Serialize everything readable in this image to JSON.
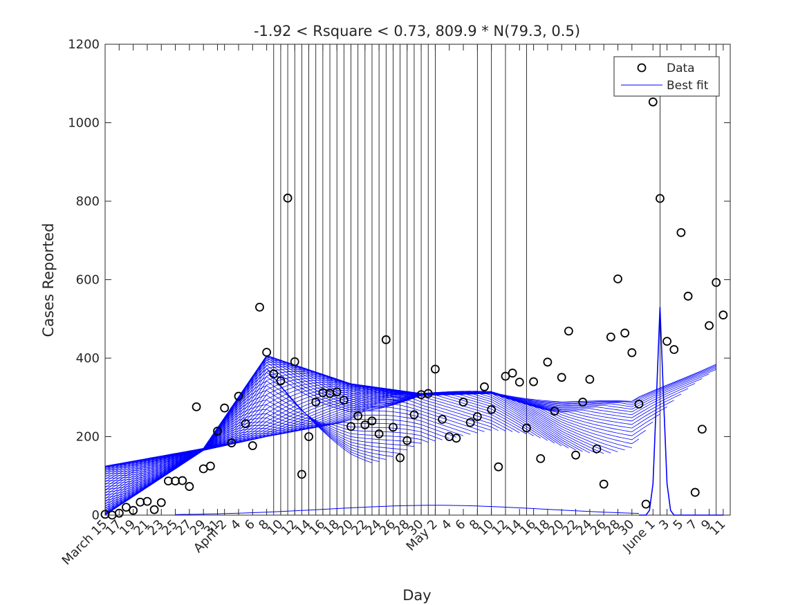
{
  "chart_data": {
    "type": "scatter",
    "title": "-1.92 < Rsquare < 0.73,  809.9 * N(79.3, 0.5)",
    "xlabel": "Day",
    "ylabel": "Cases Reported",
    "xlim": [
      0,
      89
    ],
    "ylim": [
      0,
      1200
    ],
    "y_ticks": [
      0,
      200,
      400,
      600,
      800,
      1000,
      1200
    ],
    "x_ticks": [
      {
        "x": 0,
        "label": "March 15"
      },
      {
        "x": 2,
        "label": "17"
      },
      {
        "x": 4,
        "label": "19"
      },
      {
        "x": 6,
        "label": "21"
      },
      {
        "x": 8,
        "label": "23"
      },
      {
        "x": 10,
        "label": "25"
      },
      {
        "x": 12,
        "label": "27"
      },
      {
        "x": 14,
        "label": "29"
      },
      {
        "x": 16,
        "label": "31"
      },
      {
        "x": 17,
        "label": "April 2"
      },
      {
        "x": 19,
        "label": "4"
      },
      {
        "x": 21,
        "label": "6"
      },
      {
        "x": 23,
        "label": "8"
      },
      {
        "x": 25,
        "label": "10"
      },
      {
        "x": 27,
        "label": "12"
      },
      {
        "x": 29,
        "label": "14"
      },
      {
        "x": 31,
        "label": "16"
      },
      {
        "x": 33,
        "label": "18"
      },
      {
        "x": 35,
        "label": "20"
      },
      {
        "x": 37,
        "label": "22"
      },
      {
        "x": 39,
        "label": "24"
      },
      {
        "x": 41,
        "label": "26"
      },
      {
        "x": 43,
        "label": "28"
      },
      {
        "x": 45,
        "label": "30"
      },
      {
        "x": 47,
        "label": "May 2"
      },
      {
        "x": 49,
        "label": "4"
      },
      {
        "x": 51,
        "label": "6"
      },
      {
        "x": 53,
        "label": "8"
      },
      {
        "x": 55,
        "label": "10"
      },
      {
        "x": 57,
        "label": "12"
      },
      {
        "x": 59,
        "label": "14"
      },
      {
        "x": 61,
        "label": "16"
      },
      {
        "x": 63,
        "label": "18"
      },
      {
        "x": 65,
        "label": "20"
      },
      {
        "x": 67,
        "label": "22"
      },
      {
        "x": 69,
        "label": "24"
      },
      {
        "x": 71,
        "label": "26"
      },
      {
        "x": 73,
        "label": "28"
      },
      {
        "x": 75,
        "label": "30"
      },
      {
        "x": 78,
        "label": "June 1"
      },
      {
        "x": 80,
        "label": "3"
      },
      {
        "x": 82,
        "label": "5"
      },
      {
        "x": 84,
        "label": "7"
      },
      {
        "x": 86,
        "label": "9"
      },
      {
        "x": 88,
        "label": "11"
      }
    ],
    "legend": {
      "position": "top-right",
      "entries": [
        "Data",
        "Best fit"
      ]
    },
    "grid": false,
    "series": [
      {
        "name": "Data",
        "marker": "circle",
        "color": "#000000",
        "x": [
          0,
          1,
          2,
          3,
          4,
          5,
          6,
          7,
          8,
          9,
          10,
          11,
          12,
          13,
          14,
          15,
          16,
          17,
          18,
          19,
          20,
          21,
          22,
          23,
          24,
          25,
          26,
          27,
          28,
          29,
          30,
          31,
          32,
          33,
          34,
          35,
          36,
          37,
          38,
          39,
          40,
          41,
          42,
          43,
          44,
          45,
          46,
          47,
          48,
          49,
          50,
          51,
          52,
          53,
          54,
          55,
          56,
          57,
          58,
          59,
          60,
          61,
          62,
          63,
          64,
          65,
          66,
          67,
          68,
          69,
          70,
          71,
          72,
          73,
          74,
          75,
          76,
          77,
          78,
          79,
          80,
          81,
          82,
          83,
          84,
          85,
          86,
          87,
          88
        ],
        "y": [
          2,
          0,
          5,
          20,
          12,
          33,
          35,
          14,
          32,
          87,
          87,
          88,
          73,
          276,
          118,
          125,
          214,
          273,
          184,
          303,
          233,
          177,
          530,
          415,
          360,
          342,
          808,
          391,
          104,
          200,
          288,
          312,
          310,
          314,
          293,
          226,
          253,
          230,
          240,
          207,
          447,
          224,
          146,
          190,
          256,
          307,
          310,
          372,
          244,
          200,
          196,
          288,
          236,
          251,
          327,
          269,
          123,
          354,
          362,
          339,
          222,
          340,
          144,
          390,
          265,
          351,
          469,
          153,
          288,
          346,
          169,
          79,
          454,
          602,
          464,
          414,
          283,
          28,
          1053,
          807,
          443,
          422,
          720,
          558,
          58,
          219,
          483,
          593,
          510
        ]
      }
    ],
    "fit_breakpoints": [
      23,
      24,
      25,
      26,
      27,
      28,
      29,
      30,
      31,
      32,
      33,
      34,
      35,
      36,
      37,
      38,
      39,
      40,
      41,
      42,
      43,
      44,
      45,
      46,
      47,
      48,
      49,
      50,
      51,
      52,
      53,
      54,
      55,
      56,
      57,
      58,
      59,
      60,
      61,
      62,
      63,
      64,
      65,
      66,
      67,
      68,
      69,
      70,
      71,
      72,
      73,
      74,
      75,
      76
    ],
    "fit_envelope_x": [
      0,
      14,
      23,
      35,
      45,
      55,
      65,
      75,
      87
    ],
    "fit_envelope_hi": [
      125,
      170,
      407,
      335,
      310,
      322,
      300,
      290,
      427
    ],
    "fit_envelope_lo": [
      0,
      165,
      200,
      240,
      305,
      310,
      255,
      220,
      400
    ],
    "best_fit": {
      "label": "809.9 * N(79.3, 0.5)",
      "x": [
        76,
        77,
        77.5,
        78,
        78.5,
        79,
        79.5,
        80,
        80.5,
        81,
        82,
        84,
        86,
        88
      ],
      "y": [
        0,
        0,
        12,
        80,
        300,
        530,
        300,
        80,
        12,
        0,
        0,
        0,
        0,
        0
      ]
    },
    "best_fit_color": "#0000ff",
    "fit_color": "#0000ff",
    "vertical_lines_at": [
      24,
      25,
      26,
      27,
      28,
      29,
      30,
      31,
      32,
      33,
      34,
      35,
      36,
      37,
      38,
      39,
      40,
      41,
      42,
      43,
      44,
      45,
      46,
      47,
      53,
      55,
      57,
      60,
      79,
      87
    ]
  }
}
